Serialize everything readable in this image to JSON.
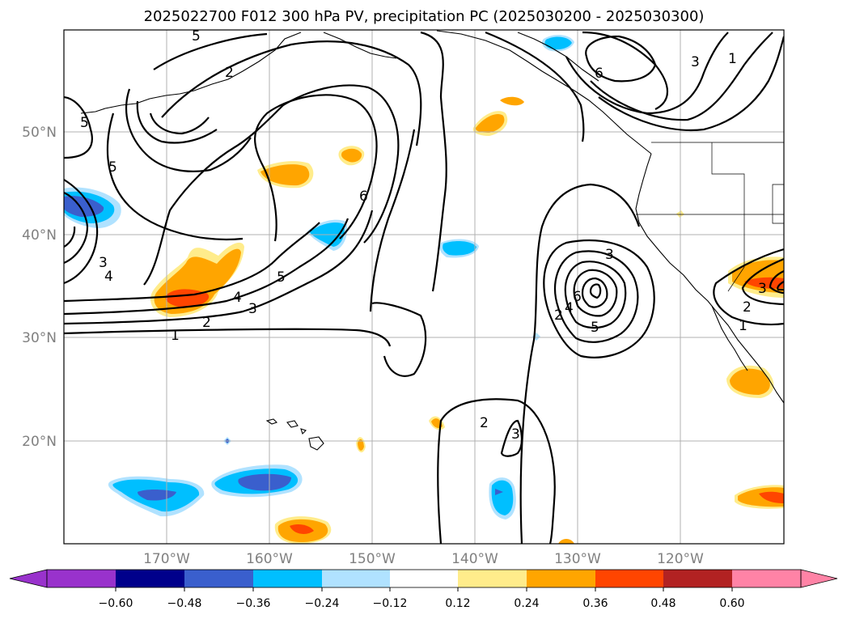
{
  "title": "2025022700 F012 300 hPa PV, precipitation PC (2025030200 - 2025030300)",
  "map": {
    "projection": "equirectangular",
    "lon_range": [
      -180,
      -110
    ],
    "lat_range": [
      10,
      60
    ],
    "gridlines": true,
    "lat_labels": [
      "50°N",
      "40°N",
      "30°N",
      "20°N"
    ],
    "lon_labels": [
      "170°W",
      "160°W",
      "150°W",
      "140°W",
      "130°W",
      "120°W"
    ],
    "pv_contour_labels": [
      "5",
      "2",
      "6",
      "5",
      "3",
      "1",
      "5",
      "2",
      "3",
      "4",
      "6",
      "5",
      "4",
      "3",
      "2",
      "1",
      "3",
      "6",
      "4",
      "5",
      "2",
      "3",
      "2",
      "1",
      "3"
    ]
  },
  "colorbar": {
    "extend": "both",
    "tick_labels": [
      "−0.60",
      "−0.48",
      "−0.36",
      "−0.24",
      "−0.12",
      "0.12",
      "0.24",
      "0.36",
      "0.48",
      "0.60"
    ],
    "colors": [
      "#9932cc",
      "#00008b",
      "#3a5fcd",
      "#00bfff",
      "#b0e2ff",
      "#ffffff",
      "#ffec8b",
      "#ffa500",
      "#ff4500",
      "#b22222",
      "#ff83a6"
    ]
  }
}
